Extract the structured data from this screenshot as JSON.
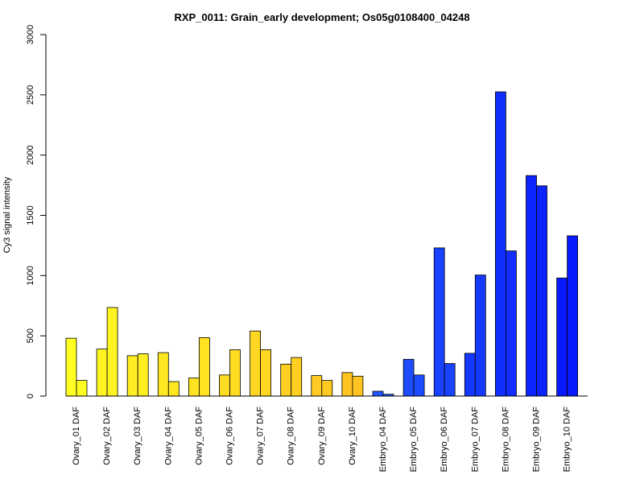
{
  "chart_data": {
    "type": "bar",
    "title": "RXP_0011: Grain_early development; Os05g0108400_04248",
    "xlabel": "",
    "ylabel": "Cy3 signal intensity",
    "ylim": [
      0,
      3000
    ],
    "yticks": [
      "0",
      "500",
      "1000",
      "1500",
      "2000",
      "2500",
      "3000"
    ],
    "grid": false,
    "legend": "none",
    "categories": [
      "Ovary_01 DAF",
      "Ovary_02 DAF",
      "Ovary_03 DAF",
      "Ovary_04 DAF",
      "Ovary_05 DAF",
      "Ovary_06 DAF",
      "Ovary_07 DAF",
      "Ovary_08 DAF",
      "Ovary_09 DAF",
      "Ovary_10 DAF",
      "Embryo_04 DAF",
      "Embryo_05 DAF",
      "Embryo_06 DAF",
      "Embryo_07 DAF",
      "Embryo_08 DAF",
      "Embryo_09 DAF",
      "Embryo_10 DAF"
    ],
    "series": [
      {
        "values": [
          480,
          390,
          335,
          360,
          150,
          175,
          540,
          265,
          170,
          195,
          40,
          305,
          1230,
          355,
          2525,
          1830,
          980
        ]
      },
      {
        "values": [
          130,
          735,
          350,
          120,
          485,
          385,
          385,
          320,
          130,
          165,
          15,
          175,
          270,
          1005,
          1205,
          1745,
          1330
        ]
      }
    ],
    "colors": [
      "#ffff21",
      "#fff421",
      "#ffee21",
      "#ffe821",
      "#ffe221",
      "#ffdc21",
      "#ffd621",
      "#ffd021",
      "#ffca21",
      "#ffc421",
      "#2155ff",
      "#1d4cff",
      "#1942ff",
      "#1538ff",
      "#112eff",
      "#0d24ff",
      "#091aff"
    ]
  }
}
